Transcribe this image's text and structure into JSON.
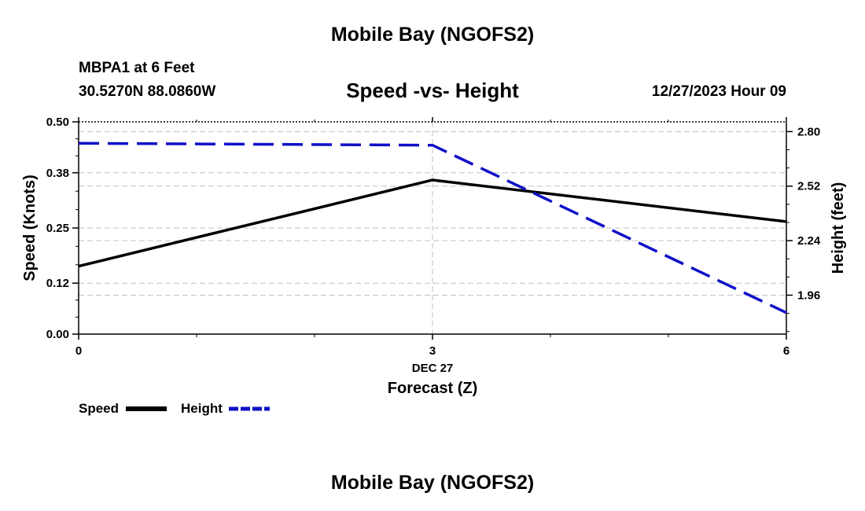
{
  "page": {
    "main_title": "Mobile Bay (NGOFS2)",
    "station_line": "MBPA1 at 6 Feet",
    "coords_line": "30.5270N  88.0860W",
    "plot_title": "Speed -vs- Height",
    "datetime_line": "12/27/2023 Hour 09",
    "bottom_title": "Mobile Bay (NGOFS2)"
  },
  "colors": {
    "speed": "#000000",
    "height": "#1010c8",
    "grid": "#c0c0c0"
  },
  "chart_data": {
    "type": "line",
    "title": "Speed -vs- Height",
    "xlabel": "Forecast (Z)",
    "x_date_label": "DEC 27",
    "ylabel_left": "Speed (Knots)",
    "ylabel_right": "Height (feet)",
    "x": [
      0,
      3,
      6
    ],
    "x_ticks": [
      "0",
      "3",
      "6"
    ],
    "xlim": [
      0,
      6
    ],
    "ylim_left": [
      0.0,
      0.5
    ],
    "ylim_right": [
      1.76,
      2.85
    ],
    "left_ticks": [
      "0.00",
      "0.12",
      "0.25",
      "0.38",
      "0.50"
    ],
    "left_tick_values": [
      0.0,
      0.12,
      0.25,
      0.38,
      0.5
    ],
    "right_ticks": [
      "1.96",
      "2.24",
      "2.52",
      "2.80"
    ],
    "right_tick_values": [
      1.96,
      2.24,
      2.52,
      2.8
    ],
    "series": [
      {
        "name": "Speed",
        "axis": "left",
        "style": "solid",
        "values": [
          0.16,
          0.363,
          0.265
        ]
      },
      {
        "name": "Height",
        "axis": "right",
        "style": "dashed",
        "values": [
          2.74,
          2.73,
          1.87
        ]
      }
    ],
    "legend": [
      {
        "label": "Speed"
      },
      {
        "label": "Height"
      }
    ],
    "legend_position": "bottom-left",
    "grid": true
  }
}
